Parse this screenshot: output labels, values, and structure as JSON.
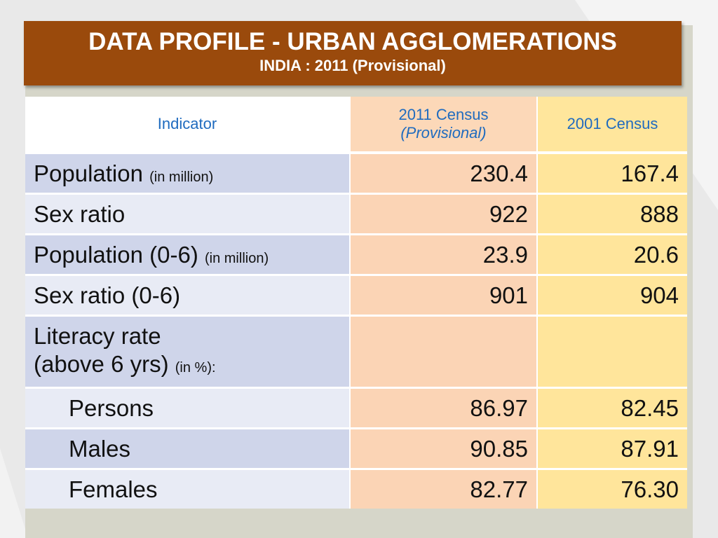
{
  "header": {
    "title": "DATA PROFILE - URBAN AGGLOMERATIONS",
    "subtitle": "INDIA : 2011 (Provisional)"
  },
  "table": {
    "columns": [
      {
        "lines": [
          "Indicator"
        ]
      },
      {
        "lines": [
          "2011 Census",
          "(Provisional)"
        ]
      },
      {
        "lines": [
          "2001 Census"
        ]
      }
    ],
    "rows": [
      {
        "label_lines": [
          "Population"
        ],
        "note": "(in million)",
        "values": [
          "230.4",
          "167.4"
        ]
      },
      {
        "label_lines": [
          "Sex ratio"
        ],
        "values": [
          "922",
          "888"
        ]
      },
      {
        "label_lines": [
          "Population (0-6)"
        ],
        "note": "(in million)",
        "values": [
          "23.9",
          "20.6"
        ]
      },
      {
        "label_lines": [
          "Sex ratio (0-6)"
        ],
        "values": [
          "901",
          "904"
        ]
      },
      {
        "label_lines": [
          "Literacy rate",
          "(above 6 yrs)"
        ],
        "note": "(in %):",
        "subrows": [
          {
            "label": "Persons",
            "values": [
              "86.97",
              "82.45"
            ]
          },
          {
            "label": "Males",
            "values": [
              "90.85",
              "87.91"
            ]
          },
          {
            "label": "Females",
            "values": [
              "82.77",
              "76.30"
            ]
          }
        ]
      }
    ]
  }
}
